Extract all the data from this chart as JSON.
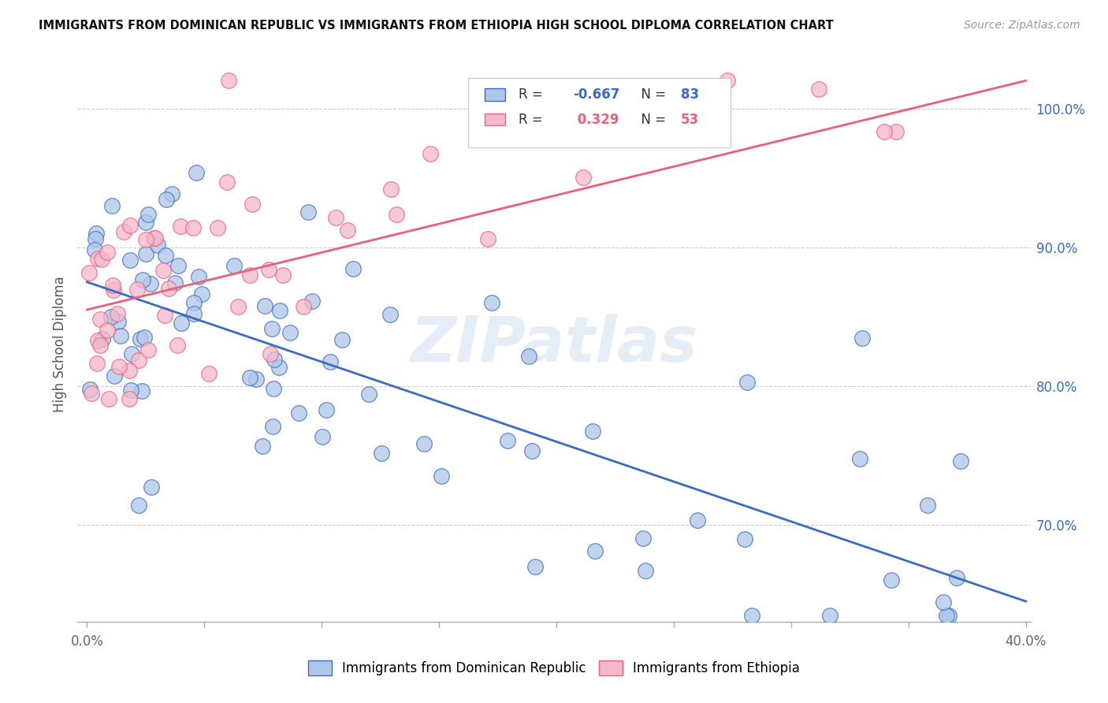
{
  "title": "IMMIGRANTS FROM DOMINICAN REPUBLIC VS IMMIGRANTS FROM ETHIOPIA HIGH SCHOOL DIPLOMA CORRELATION CHART",
  "source": "Source: ZipAtlas.com",
  "ylabel": "High School Diploma",
  "legend_label1": "Immigrants from Dominican Republic",
  "legend_label2": "Immigrants from Ethiopia",
  "R1": -0.667,
  "N1": 83,
  "R2": 0.329,
  "N2": 53,
  "color1": "#aec6e8",
  "color2": "#f5b8cb",
  "line_color1": "#3a6bbf",
  "line_color2": "#e8607a",
  "watermark": "ZIPatlas",
  "xlim": [
    0.0,
    0.4
  ],
  "ylim": [
    0.63,
    1.03
  ],
  "yticks": [
    0.7,
    0.8,
    0.9,
    1.0
  ],
  "ytick_labels": [
    "70.0%",
    "80.0%",
    "90.0%",
    "100.0%"
  ],
  "blue_trend_x": [
    0.0,
    0.4
  ],
  "blue_trend_y": [
    0.875,
    0.645
  ],
  "pink_trend_x": [
    0.0,
    0.4
  ],
  "pink_trend_y": [
    0.855,
    1.02
  ]
}
